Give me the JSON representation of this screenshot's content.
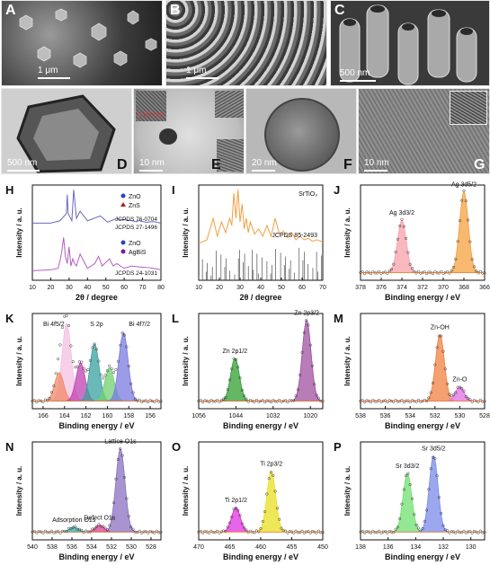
{
  "figure": {
    "panels": [
      {
        "id": "A",
        "label": "A",
        "scale": "1 μm"
      },
      {
        "id": "B",
        "label": "B",
        "scale": "1 μm"
      },
      {
        "id": "C",
        "label": "C",
        "scale": "500 nm"
      },
      {
        "id": "D",
        "label": "D",
        "scale": "500 nm"
      },
      {
        "id": "E",
        "label": "E",
        "scale": "10 nm",
        "annotations": [
          "0.33 nm"
        ]
      },
      {
        "id": "F",
        "label": "F",
        "scale": "20 nm"
      },
      {
        "id": "G",
        "label": "G",
        "scale": "10 nm"
      }
    ]
  },
  "chart_data": [
    {
      "id": "H",
      "label": "H",
      "type": "line",
      "xlabel": "2θ / degree",
      "ylabel": "Intensity / a. u.",
      "xlim": [
        10,
        80
      ],
      "xticks": [
        10,
        20,
        30,
        40,
        50,
        60,
        70,
        80
      ],
      "legend_upper": [
        {
          "name": "ZnO",
          "marker": "circle",
          "color": "#2f3fbf"
        },
        {
          "name": "ZnS",
          "marker": "triangle",
          "color": "#b21e1e"
        }
      ],
      "refs_upper": [
        "JCPDS 76-0704",
        "JCPDS 27-1496"
      ],
      "legend_lower": [
        {
          "name": "ZnO",
          "marker": "circle",
          "color": "#2f3fbf"
        },
        {
          "name": "AgBiS",
          "marker": "circle",
          "color": "#7a1a9a"
        }
      ],
      "refs_lower": [
        "JCPDS 24-1031"
      ],
      "series": [
        {
          "name": "upper pattern",
          "color": "#6a6ab8",
          "x": [
            10,
            20,
            25,
            28.5,
            29,
            29.5,
            31.5,
            32.5,
            34,
            36,
            40,
            47,
            51,
            56,
            57,
            63,
            67,
            68,
            69,
            72,
            76,
            80
          ],
          "y": [
            0.3,
            0.3,
            0.35,
            0.5,
            0.9,
            0.5,
            0.35,
            1.0,
            0.4,
            0.55,
            0.35,
            0.45,
            0.32,
            0.4,
            0.38,
            0.36,
            0.33,
            0.36,
            0.34,
            0.32,
            0.33,
            0.3
          ]
        },
        {
          "name": "lower pattern",
          "color": "#b060c0",
          "x": [
            10,
            20,
            24,
            25,
            26,
            27,
            28,
            29,
            30,
            31,
            32,
            33,
            34,
            36,
            40,
            44,
            46,
            48,
            52,
            54,
            56,
            60,
            64,
            68,
            72,
            76,
            80
          ],
          "y": [
            0.2,
            0.22,
            0.25,
            0.4,
            0.6,
            0.9,
            0.5,
            0.35,
            0.7,
            0.3,
            0.45,
            0.35,
            0.3,
            0.55,
            0.25,
            0.35,
            0.5,
            0.3,
            0.45,
            0.3,
            0.35,
            0.25,
            0.3,
            0.28,
            0.27,
            0.25,
            0.22
          ]
        }
      ]
    },
    {
      "id": "I",
      "label": "I",
      "type": "line",
      "xlabel": "2θ / degree",
      "ylabel": "Intensity / a. u.",
      "xlim": [
        10,
        70
      ],
      "xticks": [
        10,
        20,
        30,
        40,
        50,
        60,
        70
      ],
      "labels": [
        "SrTiO₃",
        "JCPDS 85-2493"
      ],
      "series": [
        {
          "name": "SrTiO₃",
          "color": "#f0a040",
          "x": [
            10,
            14,
            17,
            19,
            21,
            23,
            25,
            26,
            27,
            28,
            29,
            30,
            31,
            32,
            33,
            34,
            35,
            37,
            39,
            41,
            43,
            45,
            47,
            49,
            51,
            53,
            55,
            57,
            59,
            61,
            63,
            65,
            67,
            70
          ],
          "y": [
            0.25,
            0.3,
            0.6,
            0.35,
            0.55,
            0.4,
            0.6,
            0.5,
            0.95,
            0.6,
            1.0,
            0.55,
            0.8,
            0.45,
            0.6,
            0.4,
            0.55,
            0.38,
            0.45,
            0.35,
            0.5,
            0.35,
            0.6,
            0.38,
            0.42,
            0.33,
            0.4,
            0.3,
            0.35,
            0.3,
            0.32,
            0.28,
            0.3,
            0.27
          ]
        }
      ]
    },
    {
      "id": "J",
      "label": "J",
      "type": "line",
      "xlabel": "Binding energy / eV",
      "ylabel": "Intensity / a. u.",
      "xlim": [
        378,
        366
      ],
      "xticks": [
        378,
        376,
        374,
        372,
        370,
        368,
        366
      ],
      "peaks": [
        {
          "name": "Ag 3d3/2",
          "center": 374.0,
          "height": 0.55,
          "color": "#f6a0a8"
        },
        {
          "name": "Ag 3d5/2",
          "center": 368.0,
          "height": 0.85,
          "color": "#f4a040"
        }
      ]
    },
    {
      "id": "K",
      "label": "K",
      "type": "line",
      "xlabel": "Binding energy / eV",
      "ylabel": "Intensity / a. u.",
      "xlim": [
        167,
        155
      ],
      "xticks": [
        166,
        164,
        162,
        160,
        158,
        156
      ],
      "labels": [
        "Bi 4f5/2",
        "S 2p",
        "Bi 4f7/2"
      ],
      "peaks": [
        {
          "center": 163.8,
          "height": 0.82,
          "color": "#f3c0e0"
        },
        {
          "center": 164.5,
          "height": 0.3,
          "color": "#f08a6a"
        },
        {
          "center": 162.5,
          "height": 0.4,
          "color": "#c040b0"
        },
        {
          "center": 161.2,
          "height": 0.6,
          "color": "#3aa0a0"
        },
        {
          "center": 159.8,
          "height": 0.35,
          "color": "#70d070"
        },
        {
          "center": 158.5,
          "height": 0.72,
          "color": "#7a7ae0"
        }
      ]
    },
    {
      "id": "L",
      "label": "L",
      "type": "line",
      "xlabel": "Binding energy / eV",
      "ylabel": "Intensity / a. u.",
      "xlim": [
        1056,
        1016
      ],
      "xticks": [
        1056,
        1044,
        1032,
        1020
      ],
      "peaks": [
        {
          "name": "Zn 2p1/2",
          "center": 1044.3,
          "height": 0.45,
          "color": "#30a030"
        },
        {
          "name": "Zn 2p3/2",
          "center": 1021.2,
          "height": 0.85,
          "color": "#a050a0"
        }
      ]
    },
    {
      "id": "M",
      "label": "M",
      "type": "line",
      "xlabel": "Binding energy / eV",
      "ylabel": "Intensity / a. u.",
      "xlim": [
        538,
        528
      ],
      "xticks": [
        538,
        536,
        534,
        532,
        530,
        528
      ],
      "peaks": [
        {
          "name": "Zn-OH",
          "center": 531.6,
          "height": 0.7,
          "color": "#f08040"
        },
        {
          "name": "Zn-O",
          "center": 530.0,
          "height": 0.15,
          "color": "#e070e0"
        }
      ]
    },
    {
      "id": "N",
      "label": "N",
      "type": "line",
      "xlabel": "Binding energy / eV",
      "ylabel": "Intensity / a. u.",
      "xlim": [
        540,
        527
      ],
      "xticks": [
        540,
        538,
        536,
        534,
        532,
        530,
        528
      ],
      "peaks": [
        {
          "name": "Lattice O1s",
          "center": 531.1,
          "height": 0.85,
          "color": "#8a70c0"
        },
        {
          "name": "Defect O1s",
          "center": 533.2,
          "height": 0.07,
          "color": "#e04090"
        },
        {
          "name": "Adsorption O1s",
          "center": 535.8,
          "height": 0.05,
          "color": "#30b0b0"
        }
      ]
    },
    {
      "id": "O",
      "label": "O",
      "type": "line",
      "xlabel": "Binding energy / eV",
      "ylabel": "Intensity / a. u.",
      "xlim": [
        470,
        450
      ],
      "xticks": [
        470,
        465,
        460,
        455,
        450
      ],
      "peaks": [
        {
          "name": "Ti 2p1/2",
          "center": 464.0,
          "height": 0.25,
          "color": "#e030e0"
        },
        {
          "name": "Ti 2p3/2",
          "center": 458.3,
          "height": 0.62,
          "color": "#e8e020"
        }
      ]
    },
    {
      "id": "P",
      "label": "P",
      "type": "line",
      "xlabel": "Binding energy / eV",
      "ylabel": "Intensity / a. u.",
      "xlim": [
        138,
        129
      ],
      "xticks": [
        138,
        136,
        134,
        132,
        130
      ],
      "peaks": [
        {
          "name": "Sr 3d3/2",
          "center": 134.6,
          "height": 0.6,
          "color": "#70e070"
        },
        {
          "name": "Sr 3d5/2",
          "center": 132.7,
          "height": 0.78,
          "color": "#7a8ae8"
        }
      ]
    }
  ]
}
